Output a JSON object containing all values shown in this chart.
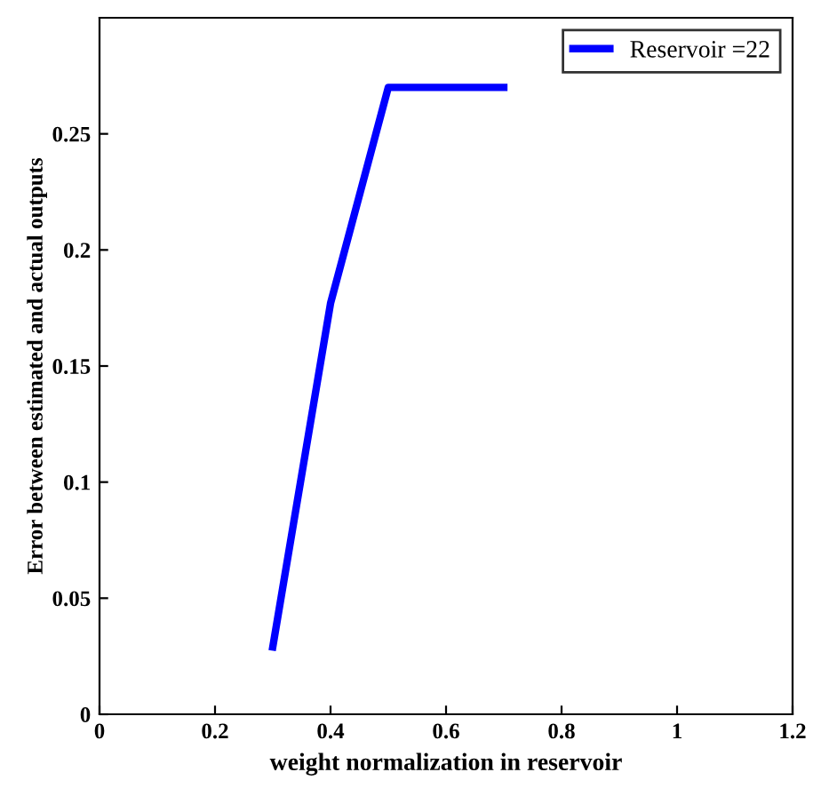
{
  "chart_data": {
    "type": "line",
    "xlabel": "weight normalization in reservoir",
    "ylabel": "Error between estimated and actual outputs",
    "x": [
      0.3,
      0.4,
      0.5,
      0.6,
      0.7
    ],
    "series": [
      {
        "name": "Reservoir =22",
        "color": "#0000ff",
        "values": [
          0.029,
          0.177,
          0.27,
          0.27,
          0.27
        ]
      }
    ],
    "xlim": [
      0,
      1.2
    ],
    "xticks": [
      0,
      0.2,
      0.4,
      0.6,
      0.8,
      1,
      1.2
    ],
    "ylim": [
      0,
      0.3
    ],
    "yticks": [
      0,
      0.05,
      0.1,
      0.15,
      0.2,
      0.25
    ],
    "grid": false,
    "legend": "top right",
    "marker": "none",
    "line_style": "solid"
  }
}
